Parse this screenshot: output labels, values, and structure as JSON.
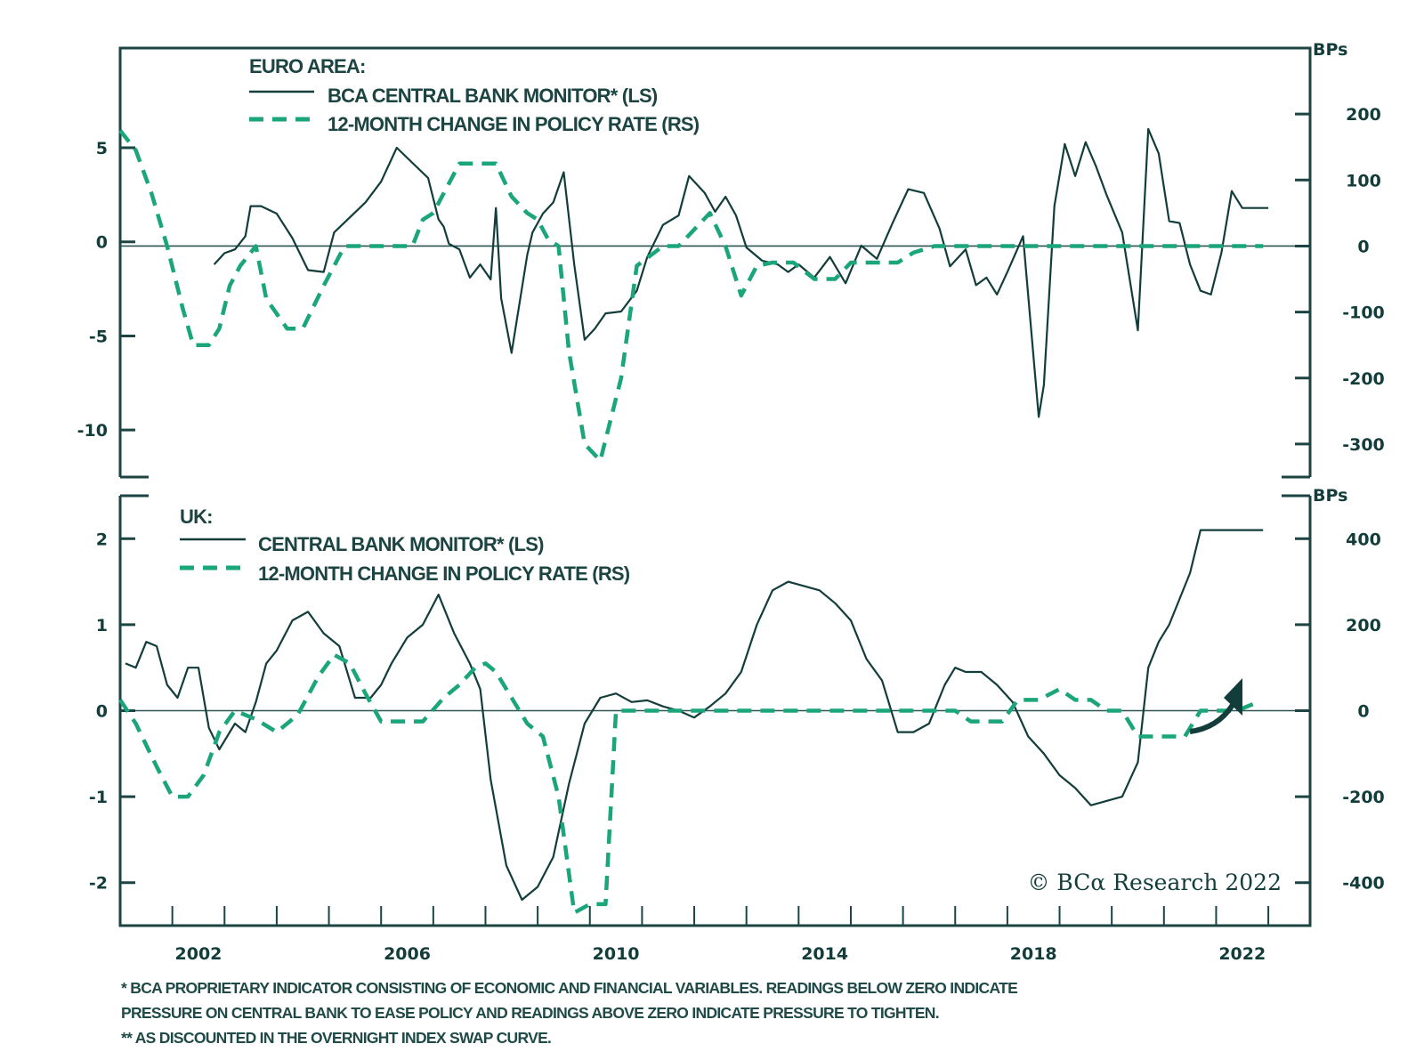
{
  "colors": {
    "monitor_line": "#123d3b",
    "policy_line": "#1aa57a",
    "axis": "#1b4442",
    "zero_line": "#2f5553"
  },
  "copyright": "© BCα Research 2022",
  "footnotes": [
    "*  BCA PROPRIETARY INDICATOR CONSISTING OF ECONOMIC AND FINANCIAL VARIABLES. READINGS BELOW ZERO INDICATE",
    "   PRESSURE ON CENTRAL BANK TO EASE POLICY AND READINGS ABOVE ZERO INDICATE PRESSURE TO TIGHTEN.",
    "** AS DISCOUNTED IN THE OVERNIGHT INDEX SWAP CURVE."
  ],
  "annotation": {
    "type": "arrow",
    "meaning": "expected rise in UK policy rate",
    "icon": "curved-up-arrow-icon"
  },
  "chart_data": [
    {
      "type": "line",
      "panel": "top",
      "title": "EURO AREA:",
      "legend": {
        "placement": "top-left",
        "entries": [
          {
            "label": "BCA CENTRAL BANK MONITOR* (LS)",
            "style": "solid"
          },
          {
            "label": "12-MONTH CHANGE IN POLICY RATE (RS)",
            "style": "dashed"
          }
        ]
      },
      "x_ticks": [
        "2002",
        "2006",
        "2010",
        "2014",
        "2018",
        "2022"
      ],
      "xlim": [
        2000.0,
        2022.8
      ],
      "left_axis": {
        "label": "",
        "ticks": [
          "5",
          "0",
          "-5",
          "-10"
        ],
        "tick_values": [
          5,
          0,
          -5,
          -10
        ],
        "ylim": [
          -12.5,
          10.3
        ]
      },
      "right_axis": {
        "label": "BPs",
        "ticks": [
          "200",
          "100",
          "0",
          "-100",
          "-200",
          "-300"
        ],
        "tick_values": [
          200,
          100,
          0,
          -100,
          -200,
          -300
        ],
        "ylim": [
          -350,
          300
        ]
      },
      "series": [
        {
          "name": "BCA CENTRAL BANK MONITOR* (LS)",
          "axis": "left",
          "x": [
            2001.8,
            2002.0,
            2002.2,
            2002.4,
            2002.5,
            2002.7,
            2003.0,
            2003.3,
            2003.6,
            2003.9,
            2004.1,
            2004.4,
            2004.7,
            2005.0,
            2005.3,
            2005.6,
            2005.9,
            2006.1,
            2006.2,
            2006.3,
            2006.5,
            2006.7,
            2006.9,
            2007.1,
            2007.2,
            2007.3,
            2007.5,
            2007.8,
            2007.9,
            2008.1,
            2008.3,
            2008.5,
            2008.7,
            2008.9,
            2009.1,
            2009.3,
            2009.6,
            2009.9,
            2010.1,
            2010.4,
            2010.7,
            2010.9,
            2011.2,
            2011.4,
            2011.6,
            2011.8,
            2012.0,
            2012.3,
            2012.6,
            2012.8,
            2013.0,
            2013.3,
            2013.6,
            2013.9,
            2014.2,
            2014.5,
            2014.8,
            2015.1,
            2015.4,
            2015.7,
            2015.9,
            2016.2,
            2016.4,
            2016.6,
            2016.8,
            2017.0,
            2017.3,
            2017.6,
            2017.7,
            2017.9,
            2018.1,
            2018.3,
            2018.5,
            2018.7,
            2018.9,
            2019.2,
            2019.5,
            2019.7,
            2019.9,
            2020.1,
            2020.3,
            2020.5,
            2020.7,
            2020.9,
            2021.1,
            2021.3,
            2021.5,
            2021.8,
            2022.0
          ],
          "y": [
            -1.2,
            -0.6,
            -0.4,
            0.3,
            1.9,
            1.9,
            1.5,
            0.2,
            -1.5,
            -1.6,
            0.5,
            1.3,
            2.1,
            3.2,
            5.0,
            4.2,
            3.4,
            1.2,
            0.8,
            -0.1,
            -0.4,
            -1.9,
            -1.2,
            -2.0,
            1.8,
            -3.0,
            -5.9,
            -0.7,
            0.5,
            1.5,
            2.1,
            3.7,
            -1.2,
            -5.2,
            -4.6,
            -3.8,
            -3.7,
            -2.6,
            -0.8,
            0.9,
            1.4,
            3.5,
            2.6,
            1.6,
            2.4,
            1.4,
            -0.3,
            -1.0,
            -1.2,
            -1.6,
            -1.2,
            -1.9,
            -0.8,
            -2.2,
            -0.2,
            -0.9,
            1.0,
            2.8,
            2.6,
            0.7,
            -1.3,
            -0.4,
            -2.3,
            -1.9,
            -2.8,
            -1.6,
            0.3,
            -9.3,
            -7.6,
            1.9,
            5.2,
            3.5,
            5.3,
            4.0,
            2.5,
            0.5,
            -4.7,
            6.0,
            4.7,
            1.1,
            1.0,
            -1.2,
            -2.6,
            -2.8,
            -0.6,
            2.7,
            1.8,
            1.8,
            1.8
          ]
        },
        {
          "name": "12-MONTH CHANGE IN POLICY RATE (RS)",
          "axis": "right",
          "x": [
            2000.0,
            2000.3,
            2000.6,
            2000.9,
            2001.2,
            2001.4,
            2001.7,
            2001.9,
            2002.1,
            2002.3,
            2002.6,
            2002.8,
            2003.2,
            2003.5,
            2003.9,
            2004.3,
            2004.6,
            2005.1,
            2005.6,
            2005.8,
            2006.0,
            2006.2,
            2006.5,
            2006.8,
            2007.2,
            2007.5,
            2007.8,
            2008.0,
            2008.2,
            2008.4,
            2008.6,
            2008.9,
            2009.2,
            2009.6,
            2009.9,
            2010.4,
            2010.7,
            2011.0,
            2011.3,
            2011.6,
            2011.9,
            2012.2,
            2012.5,
            2012.9,
            2013.3,
            2013.7,
            2014.0,
            2014.5,
            2014.9,
            2015.2,
            2015.6,
            2016.0,
            2016.5,
            2017.0,
            2018.0,
            2019.0,
            2020.0,
            2021.0,
            2021.9
          ],
          "y": [
            175,
            145,
            80,
            0,
            -95,
            -150,
            -150,
            -125,
            -60,
            -30,
            0,
            -80,
            -125,
            -125,
            -60,
            0,
            0,
            0,
            0,
            40,
            50,
            80,
            125,
            125,
            125,
            75,
            50,
            40,
            10,
            0,
            -160,
            -300,
            -325,
            -200,
            -30,
            0,
            0,
            25,
            50,
            0,
            -75,
            -30,
            -25,
            -25,
            -50,
            -50,
            -25,
            -25,
            -25,
            -10,
            0,
            0,
            0,
            0,
            0,
            0,
            0,
            0,
            0
          ]
        }
      ]
    },
    {
      "type": "line",
      "panel": "bottom",
      "title": "UK:",
      "legend": {
        "placement": "top-left",
        "entries": [
          {
            "label": "CENTRAL BANK MONITOR* (LS)",
            "style": "solid"
          },
          {
            "label": "12-MONTH CHANGE IN POLICY RATE (RS)",
            "style": "dashed"
          }
        ]
      },
      "x_ticks": [
        "2002",
        "2006",
        "2010",
        "2014",
        "2018",
        "2022"
      ],
      "xlim": [
        2000.0,
        2022.8
      ],
      "left_axis": {
        "label": "",
        "ticks": [
          "2",
          "1",
          "0",
          "-1",
          "-2"
        ],
        "tick_values": [
          2,
          1,
          0,
          -1,
          -2
        ],
        "ylim": [
          -2.5,
          2.5
        ]
      },
      "right_axis": {
        "label": "BPs",
        "ticks": [
          "400",
          "200",
          "0",
          "-200",
          "-400"
        ],
        "tick_values": [
          400,
          200,
          0,
          -200,
          -400
        ],
        "ylim": [
          -500,
          500
        ]
      },
      "series": [
        {
          "name": "CENTRAL BANK MONITOR* (LS)",
          "axis": "left",
          "x": [
            2000.1,
            2000.3,
            2000.5,
            2000.7,
            2000.9,
            2001.1,
            2001.3,
            2001.5,
            2001.7,
            2001.9,
            2002.2,
            2002.4,
            2002.6,
            2002.8,
            2003.0,
            2003.3,
            2003.6,
            2003.9,
            2004.2,
            2004.5,
            2004.8,
            2005.0,
            2005.2,
            2005.5,
            2005.8,
            2006.1,
            2006.4,
            2006.7,
            2006.9,
            2007.1,
            2007.4,
            2007.7,
            2008.0,
            2008.3,
            2008.6,
            2008.9,
            2009.2,
            2009.5,
            2009.8,
            2010.1,
            2010.4,
            2010.7,
            2011.0,
            2011.3,
            2011.6,
            2011.9,
            2012.2,
            2012.5,
            2012.8,
            2013.1,
            2013.4,
            2013.7,
            2014.0,
            2014.3,
            2014.6,
            2014.9,
            2015.2,
            2015.5,
            2015.8,
            2016.0,
            2016.2,
            2016.5,
            2016.8,
            2017.1,
            2017.4,
            2017.7,
            2018.0,
            2018.3,
            2018.6,
            2018.9,
            2019.2,
            2019.5,
            2019.7,
            2019.9,
            2020.1,
            2020.3,
            2020.5,
            2020.7,
            2020.9,
            2021.1,
            2021.3,
            2021.5,
            2021.7,
            2021.9
          ],
          "y": [
            0.55,
            0.5,
            0.8,
            0.75,
            0.3,
            0.15,
            0.5,
            0.5,
            -0.2,
            -0.45,
            -0.15,
            -0.25,
            0.1,
            0.55,
            0.7,
            1.05,
            1.15,
            0.9,
            0.75,
            0.15,
            0.15,
            0.3,
            0.55,
            0.85,
            1.0,
            1.35,
            0.9,
            0.55,
            0.25,
            -0.8,
            -1.8,
            -2.2,
            -2.05,
            -1.7,
            -0.85,
            -0.15,
            0.15,
            0.2,
            0.1,
            0.12,
            0.05,
            0.0,
            -0.08,
            0.05,
            0.2,
            0.45,
            1.0,
            1.4,
            1.5,
            1.45,
            1.4,
            1.25,
            1.05,
            0.6,
            0.35,
            -0.25,
            -0.25,
            -0.15,
            0.3,
            0.5,
            0.45,
            0.45,
            0.3,
            0.1,
            -0.3,
            -0.5,
            -0.75,
            -0.9,
            -1.1,
            -1.05,
            -1.0,
            -0.6,
            0.5,
            0.8,
            1.0,
            1.3,
            1.6,
            2.1,
            2.1,
            2.1,
            2.1,
            2.1,
            2.1,
            2.1
          ]
        },
        {
          "name": "12-MONTH CHANGE IN POLICY RATE (RS)",
          "axis": "right",
          "x": [
            2000.0,
            2000.3,
            2000.7,
            2001.0,
            2001.3,
            2001.6,
            2001.9,
            2002.2,
            2002.6,
            2003.0,
            2003.4,
            2003.8,
            2004.1,
            2004.4,
            2004.7,
            2005.0,
            2005.4,
            2005.8,
            2006.2,
            2006.5,
            2006.8,
            2007.0,
            2007.2,
            2007.5,
            2007.8,
            2008.1,
            2008.4,
            2008.7,
            2009.0,
            2009.3,
            2009.5,
            2010.0,
            2011.0,
            2012.0,
            2013.0,
            2014.0,
            2015.0,
            2016.0,
            2016.3,
            2016.6,
            2016.9,
            2017.2,
            2017.6,
            2018.0,
            2018.3,
            2018.6,
            2018.9,
            2019.2,
            2019.5,
            2019.8,
            2020.1,
            2020.4,
            2020.7,
            2021.0,
            2021.4,
            2021.8
          ],
          "y": [
            25,
            -30,
            -130,
            -200,
            -200,
            -150,
            -50,
            0,
            -20,
            -50,
            -10,
            80,
            130,
            110,
            40,
            -25,
            -25,
            -25,
            30,
            60,
            100,
            110,
            90,
            30,
            -30,
            -60,
            -200,
            -470,
            -450,
            -450,
            0,
            0,
            0,
            0,
            0,
            0,
            0,
            0,
            -25,
            -25,
            -25,
            25,
            25,
            50,
            25,
            25,
            0,
            0,
            -60,
            -60,
            -60,
            -60,
            0,
            0,
            0,
            20
          ]
        }
      ]
    }
  ]
}
